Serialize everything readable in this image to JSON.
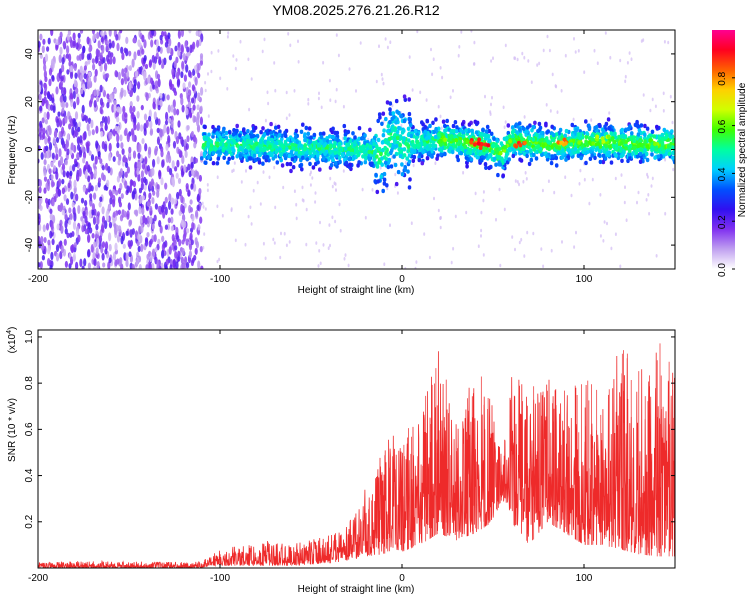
{
  "chart_data": [
    {
      "type": "heatmap",
      "title": "YM08.2025.276.21.26.R12",
      "xlabel": "Height of straight line (km)",
      "ylabel": "Frequency (Hz)",
      "xlim": [
        -200,
        150
      ],
      "ylim": [
        -50,
        50
      ],
      "xticks": [
        -200,
        -100,
        0,
        100
      ],
      "yticks": [
        -40,
        -20,
        0,
        20,
        40
      ],
      "colorbar": {
        "label": "Normalized spectral amplitude",
        "range": [
          0.0,
          1.0
        ],
        "ticks": [
          "0.0",
          "0.2",
          "0.4",
          "0.6",
          "0.8"
        ],
        "tick_values": [
          0.0,
          0.2,
          0.4,
          0.6,
          0.8
        ],
        "colors": [
          "#ffffff",
          "#c0a0f0",
          "#8030f0",
          "#3010f0",
          "#0050ff",
          "#00d0ff",
          "#00ffa0",
          "#40ff00",
          "#d0ff00",
          "#ffd000",
          "#ff6000",
          "#ff0020",
          "#ff0090"
        ]
      },
      "regions": [
        {
          "x_from": -200,
          "x_to": -110,
          "freq_from": -50,
          "freq_to": 50,
          "typical_amplitude": 0.15,
          "description_kind": "broadband noise"
        },
        {
          "x_from": -110,
          "x_to": 150,
          "freq_from": -8,
          "freq_to": 10,
          "typical_amplitude": 0.3,
          "description_kind": "band"
        }
      ],
      "band_center_hz": [
        {
          "x": -110,
          "f": 2
        },
        {
          "x": -60,
          "f": 1
        },
        {
          "x": -20,
          "f": 0
        },
        {
          "x": -10,
          "f": -2
        },
        {
          "x": -5,
          "f": 8
        },
        {
          "x": 0,
          "f": 2
        },
        {
          "x": 20,
          "f": 4
        },
        {
          "x": 45,
          "f": 2
        },
        {
          "x": 55,
          "f": -2
        },
        {
          "x": 60,
          "f": 4
        },
        {
          "x": 80,
          "f": 2
        },
        {
          "x": 100,
          "f": 3
        },
        {
          "x": 150,
          "f": 2
        }
      ],
      "hotspots": [
        {
          "x": 40,
          "f": 3,
          "value": 0.9
        },
        {
          "x": 45,
          "f": 2,
          "value": 0.95
        },
        {
          "x": 65,
          "f": 2,
          "value": 0.9
        },
        {
          "x": 88,
          "f": 3,
          "value": 0.85
        },
        {
          "x": 110,
          "f": 4,
          "value": 0.7
        }
      ]
    },
    {
      "type": "line",
      "title": "",
      "xlabel": "Height of straight line (km)",
      "ylabel": "SNR (10 * v/v)",
      "yscale_label": "(x10",
      "yscale_exponent": "4",
      "xlim": [
        -200,
        150
      ],
      "ylim": [
        0,
        1.03
      ],
      "xticks": [
        -200,
        -100,
        0,
        100
      ],
      "yticks": [
        0.2,
        0.4,
        0.6,
        0.8,
        1.0
      ],
      "ytick_labels": [
        "0.2",
        "0.4",
        "0.6",
        "0.8",
        "1.0"
      ],
      "color": "#ee2a2a",
      "series": [
        {
          "name": "SNR envelope",
          "x": [
            -200,
            -110,
            -105,
            -80,
            -60,
            -40,
            -30,
            -20,
            -10,
            -5,
            0,
            10,
            20,
            30,
            40,
            50,
            55,
            60,
            70,
            80,
            90,
            100,
            110,
            120,
            130,
            140,
            145,
            150
          ],
          "y_min": [
            0.0,
            0.0,
            0.01,
            0.01,
            0.01,
            0.02,
            0.03,
            0.05,
            0.06,
            0.08,
            0.07,
            0.1,
            0.15,
            0.12,
            0.15,
            0.2,
            0.3,
            0.2,
            0.1,
            0.2,
            0.15,
            0.1,
            0.1,
            0.08,
            0.06,
            0.05,
            0.05,
            0.05
          ],
          "y_max": [
            0.03,
            0.03,
            0.07,
            0.12,
            0.12,
            0.15,
            0.2,
            0.35,
            0.55,
            0.62,
            0.6,
            0.75,
            0.99,
            0.7,
            0.85,
            0.8,
            0.5,
            0.92,
            0.85,
            0.85,
            0.85,
            0.82,
            0.85,
            0.96,
            0.9,
            1.03,
            0.96,
            0.96
          ]
        }
      ]
    }
  ]
}
